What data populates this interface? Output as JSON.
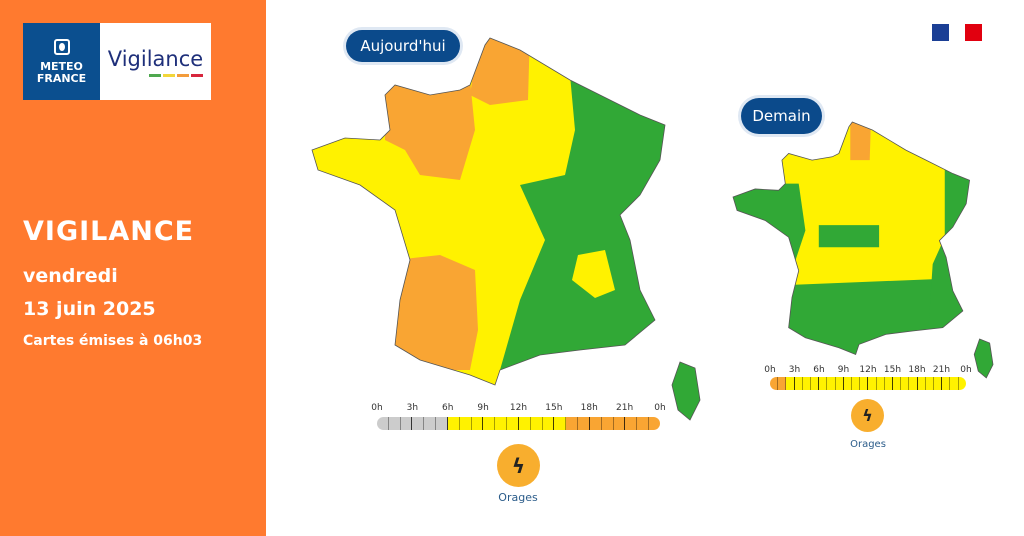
{
  "brand": {
    "org_line1": "METEO",
    "org_line2": "FRANCE",
    "product": "Vigilance",
    "product_bar_colors": [
      "#4FA84F",
      "#F2D63A",
      "#F39C3C",
      "#D7263D"
    ]
  },
  "left_panel": {
    "title": "VIGILANCE",
    "day": "vendredi",
    "date": "13 juin 2025",
    "issued": "Cartes émises à 06h03",
    "background": "#FF7A2F"
  },
  "colors": {
    "green": "#31A836",
    "yellow": "#FFF200",
    "orange": "#F9A533",
    "grey": "#CCCCCC",
    "pill": "#0B4A8B"
  },
  "maps": [
    {
      "label": "Aujourd'hui",
      "levels_present": [
        "green",
        "yellow",
        "orange"
      ],
      "timeline": {
        "ticks": [
          "0h",
          "3h",
          "6h",
          "9h",
          "12h",
          "15h",
          "18h",
          "21h",
          "0h"
        ],
        "hours": [
          "grey",
          "grey",
          "grey",
          "grey",
          "grey",
          "grey",
          "yellow",
          "yellow",
          "yellow",
          "yellow",
          "yellow",
          "yellow",
          "yellow",
          "yellow",
          "yellow",
          "yellow",
          "orange",
          "orange",
          "orange",
          "orange",
          "orange",
          "orange",
          "orange",
          "orange"
        ]
      },
      "phenomenon": {
        "icon": "lightning-icon",
        "label": "Orages"
      }
    },
    {
      "label": "Demain",
      "levels_present": [
        "green",
        "yellow",
        "orange"
      ],
      "timeline": {
        "ticks": [
          "0h",
          "3h",
          "6h",
          "9h",
          "12h",
          "15h",
          "18h",
          "21h",
          "0h"
        ],
        "hours": [
          "orange",
          "orange",
          "yellow",
          "yellow",
          "yellow",
          "yellow",
          "yellow",
          "yellow",
          "yellow",
          "yellow",
          "yellow",
          "yellow",
          "yellow",
          "yellow",
          "yellow",
          "yellow",
          "yellow",
          "yellow",
          "yellow",
          "yellow",
          "yellow",
          "yellow",
          "yellow",
          "yellow"
        ]
      },
      "phenomenon": {
        "icon": "lightning-icon",
        "label": "Orages"
      }
    }
  ]
}
